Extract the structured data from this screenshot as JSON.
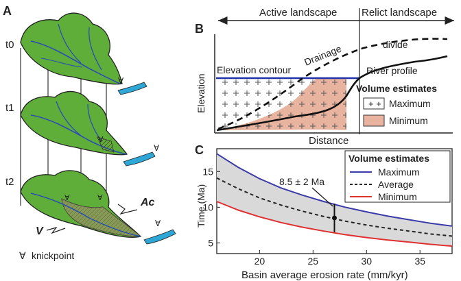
{
  "panel_a": {
    "label": "A",
    "times": [
      "t0",
      "t1",
      "t2"
    ],
    "ac_label": "Ac",
    "v_label": "V",
    "knickpoint_symbol": "∀",
    "knickpoint_label": "knickpoint"
  },
  "panel_b": {
    "label": "B",
    "active_landscape": "Active landscape",
    "relict_landscape": "Relict landscape",
    "drainage": "Drainage",
    "divide": "divide",
    "elevation_contour": "Elevation contour",
    "river_profile": "River profile",
    "y_axis": "Elevation",
    "x_axis": "Distance",
    "legend_title": "Volume estimates",
    "legend_items": [
      "Maximum",
      "Minimum"
    ],
    "colors": {
      "maximum_fill": "#ffffff",
      "minimum_fill": "#e8b4a0",
      "contour": "#2233aa"
    }
  },
  "panel_c": {
    "label": "C",
    "annotation": "8.5 ± 2 Ma",
    "legend_title": "Volume estimates",
    "colors": {
      "maximum": "#3a3aa8",
      "average": "#222222",
      "minimum": "#e03030",
      "band": "#d9d9d9"
    },
    "chart_data": {
      "type": "line",
      "xlabel": "Basin average erosion rate (mm/kyr)",
      "ylabel": "Time (Ma)",
      "xlim": [
        16,
        38
      ],
      "ylim": [
        3.5,
        18.2
      ],
      "xticks": [
        "20",
        "25",
        "30",
        "35"
      ],
      "yticks": [
        "5",
        "10",
        "15"
      ],
      "x": [
        16,
        18,
        20,
        22,
        24,
        26,
        28,
        30,
        32,
        34,
        36,
        38
      ],
      "series": [
        {
          "name": "Maximum",
          "values": [
            17.5,
            15.6,
            14.0,
            12.7,
            11.7,
            10.8,
            10.0,
            9.35,
            8.75,
            8.25,
            7.75,
            7.35
          ]
        },
        {
          "name": "Average",
          "values": [
            14.1,
            12.6,
            11.3,
            10.3,
            9.45,
            8.7,
            8.05,
            7.5,
            7.05,
            6.65,
            6.25,
            5.95
          ]
        },
        {
          "name": "Minimum",
          "values": [
            10.8,
            9.6,
            8.65,
            7.85,
            7.2,
            6.65,
            6.15,
            5.75,
            5.4,
            5.1,
            4.8,
            4.55
          ]
        }
      ],
      "estimate_point": {
        "x": 27,
        "y": 8.5,
        "error": 2
      }
    }
  }
}
